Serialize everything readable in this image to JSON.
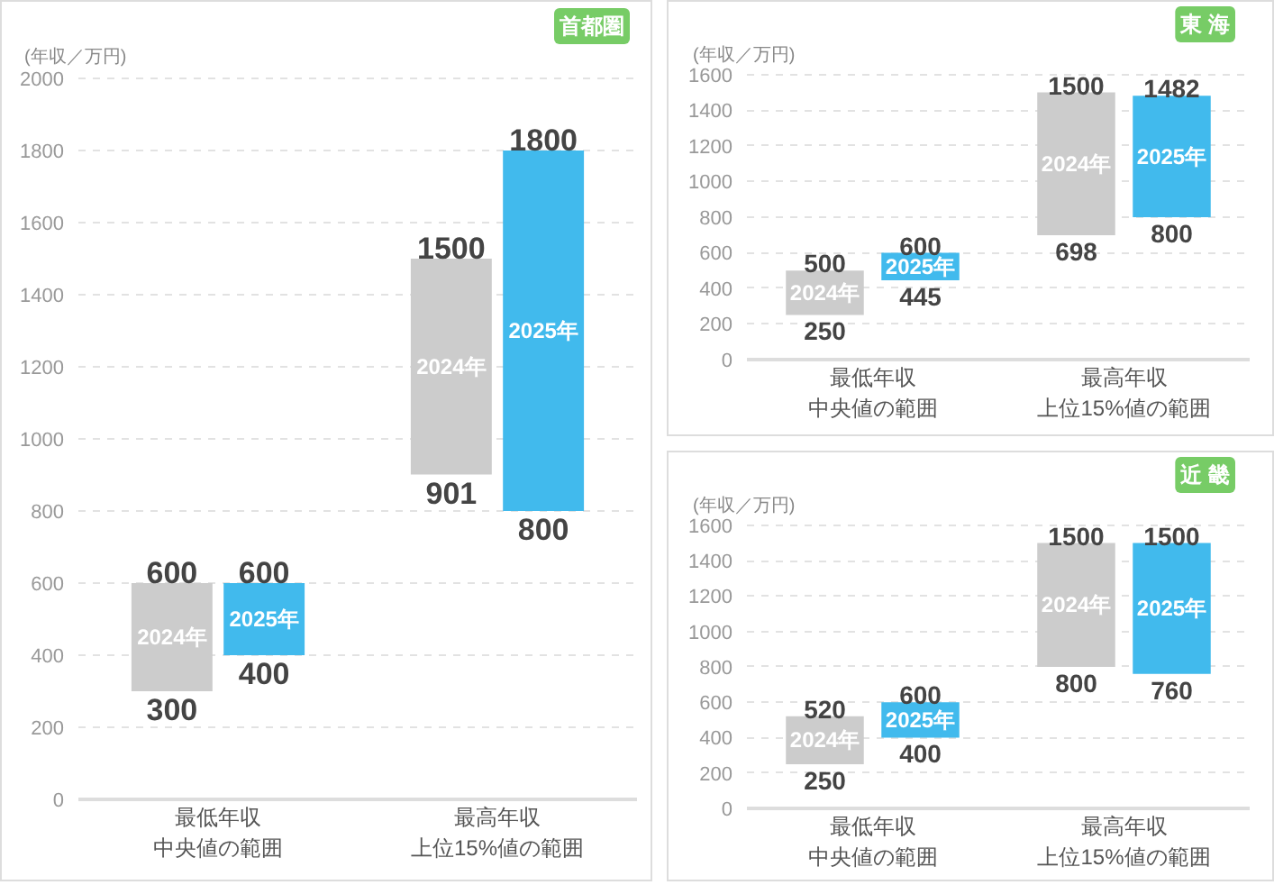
{
  "chart_data": [
    {
      "type": "bar",
      "title": "首都圏",
      "ylabel": "(年収／万円)",
      "categories": [
        "最低年収中央値の範囲",
        "最高年収上位15%値の範囲"
      ],
      "ylim": [
        0,
        2000
      ],
      "yticks": [
        0,
        200,
        400,
        600,
        800,
        1000,
        1200,
        1400,
        1600,
        1800,
        2000
      ],
      "grid": "y",
      "series": [
        {
          "name": "2024年",
          "color": "#cccccc",
          "base": [
            300,
            901
          ],
          "values": [
            300,
            599
          ]
        },
        {
          "name": "2025年",
          "color": "#41baed",
          "base": [
            400,
            800
          ],
          "values": [
            200,
            1000
          ]
        }
      ],
      "annotations": [
        {
          "text": "600",
          "x": "最低年収中央値の範囲",
          "y": 600
        },
        {
          "text": "300",
          "x": "最低年収中央値の範囲",
          "y": 300
        },
        {
          "text": "600",
          "x": "最低年収中央値の範囲",
          "y": 600
        },
        {
          "text": "400",
          "x": "最低年収中央値の範囲",
          "y": 400
        },
        {
          "text": "1500",
          "x": "最高年収上位15%値の範囲",
          "y": 1500
        },
        {
          "text": "901",
          "x": "最高年収上位15%値の範囲",
          "y": 901
        },
        {
          "text": "1800",
          "x": "最高年収上位15%値の範囲",
          "y": 1800
        },
        {
          "text": "800",
          "x": "最高年収上位15%値の範囲",
          "y": 800
        }
      ]
    },
    {
      "type": "bar",
      "title": "東 海",
      "ylabel": "(年収／万円)",
      "categories": [
        "最低年収中央値の範囲",
        "最高年収上位15%値の範囲"
      ],
      "ylim": [
        0,
        1600
      ],
      "yticks": [
        0,
        200,
        400,
        600,
        800,
        1000,
        1200,
        1400,
        1600
      ],
      "grid": "y",
      "series": [
        {
          "name": "2024年",
          "color": "#cccccc",
          "base": [
            250,
            698
          ],
          "values": [
            250,
            802
          ]
        },
        {
          "name": "2025年",
          "color": "#41baed",
          "base": [
            445,
            800
          ],
          "values": [
            155,
            682
          ]
        }
      ],
      "annotations": [
        {
          "text": "500",
          "x": "最低年収中央値の範囲",
          "y": 500
        },
        {
          "text": "250",
          "x": "最低年収中央値の範囲",
          "y": 250
        },
        {
          "text": "600",
          "x": "最低年収中央値の範囲",
          "y": 600
        },
        {
          "text": "445",
          "x": "最低年収中央値の範囲",
          "y": 445
        },
        {
          "text": "1500",
          "x": "最高年収上位15%値の範囲",
          "y": 1500
        },
        {
          "text": "698",
          "x": "最高年収上位15%値の範囲",
          "y": 698
        },
        {
          "text": "1482",
          "x": "最高年収上位15%値の範囲",
          "y": 1482
        },
        {
          "text": "800",
          "x": "最高年収上位15%値の範囲",
          "y": 800
        }
      ]
    },
    {
      "type": "bar",
      "title": "近 畿",
      "ylabel": "(年収／万円)",
      "categories": [
        "最低年収中央値の範囲",
        "最高年収上位15%値の範囲"
      ],
      "ylim": [
        0,
        1600
      ],
      "yticks": [
        0,
        200,
        400,
        600,
        800,
        1000,
        1200,
        1400,
        1600
      ],
      "grid": "y",
      "series": [
        {
          "name": "2024年",
          "color": "#cccccc",
          "base": [
            250,
            800
          ],
          "values": [
            270,
            700
          ]
        },
        {
          "name": "2025年",
          "color": "#41baed",
          "base": [
            400,
            760
          ],
          "values": [
            200,
            740
          ]
        }
      ],
      "annotations": [
        {
          "text": "520",
          "x": "最低年収中央値の範囲",
          "y": 520
        },
        {
          "text": "250",
          "x": "最低年収中央値の範囲",
          "y": 250
        },
        {
          "text": "600",
          "x": "最低年収中央値の範囲",
          "y": 600
        },
        {
          "text": "400",
          "x": "最低年収中央値の範囲",
          "y": 400
        },
        {
          "text": "1500",
          "x": "最高年収上位15%値の範囲",
          "y": 1500
        },
        {
          "text": "800",
          "x": "最高年収上位15%値の範囲",
          "y": 800
        },
        {
          "text": "1500",
          "x": "最高年収上位15%値の範囲",
          "y": 1500
        },
        {
          "text": "760",
          "x": "最高年収上位15%値の範囲",
          "y": 760
        }
      ]
    }
  ]
}
